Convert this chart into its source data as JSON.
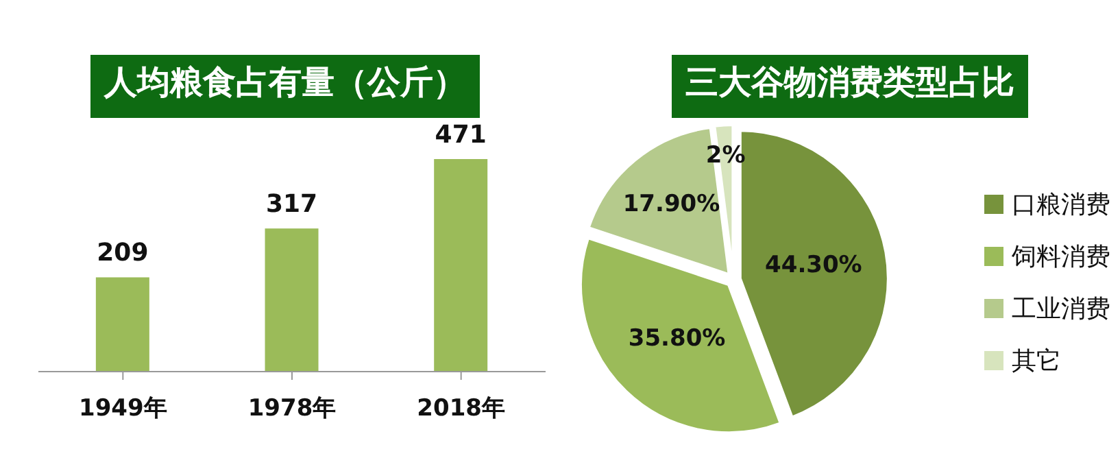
{
  "chart_data": [
    {
      "type": "bar",
      "title": "人均粮食占有量（公斤）",
      "categories": [
        "1949年",
        "1978年",
        "2018年"
      ],
      "values": [
        209,
        317,
        471
      ],
      "color": "#9bbb59",
      "data_labels": true
    },
    {
      "type": "pie",
      "title": "三大谷物消费类型占比",
      "categories": [
        "口粮消费",
        "饲料消费",
        "工业消费",
        "其它"
      ],
      "values": [
        44.3,
        35.8,
        17.9,
        2
      ],
      "value_labels": [
        "44.30%",
        "35.80%",
        "17.90%",
        "2%"
      ],
      "colors": [
        "#77933c",
        "#9bbb59",
        "#b5ca8c",
        "#d7e4bd"
      ],
      "legend": "right"
    }
  ]
}
